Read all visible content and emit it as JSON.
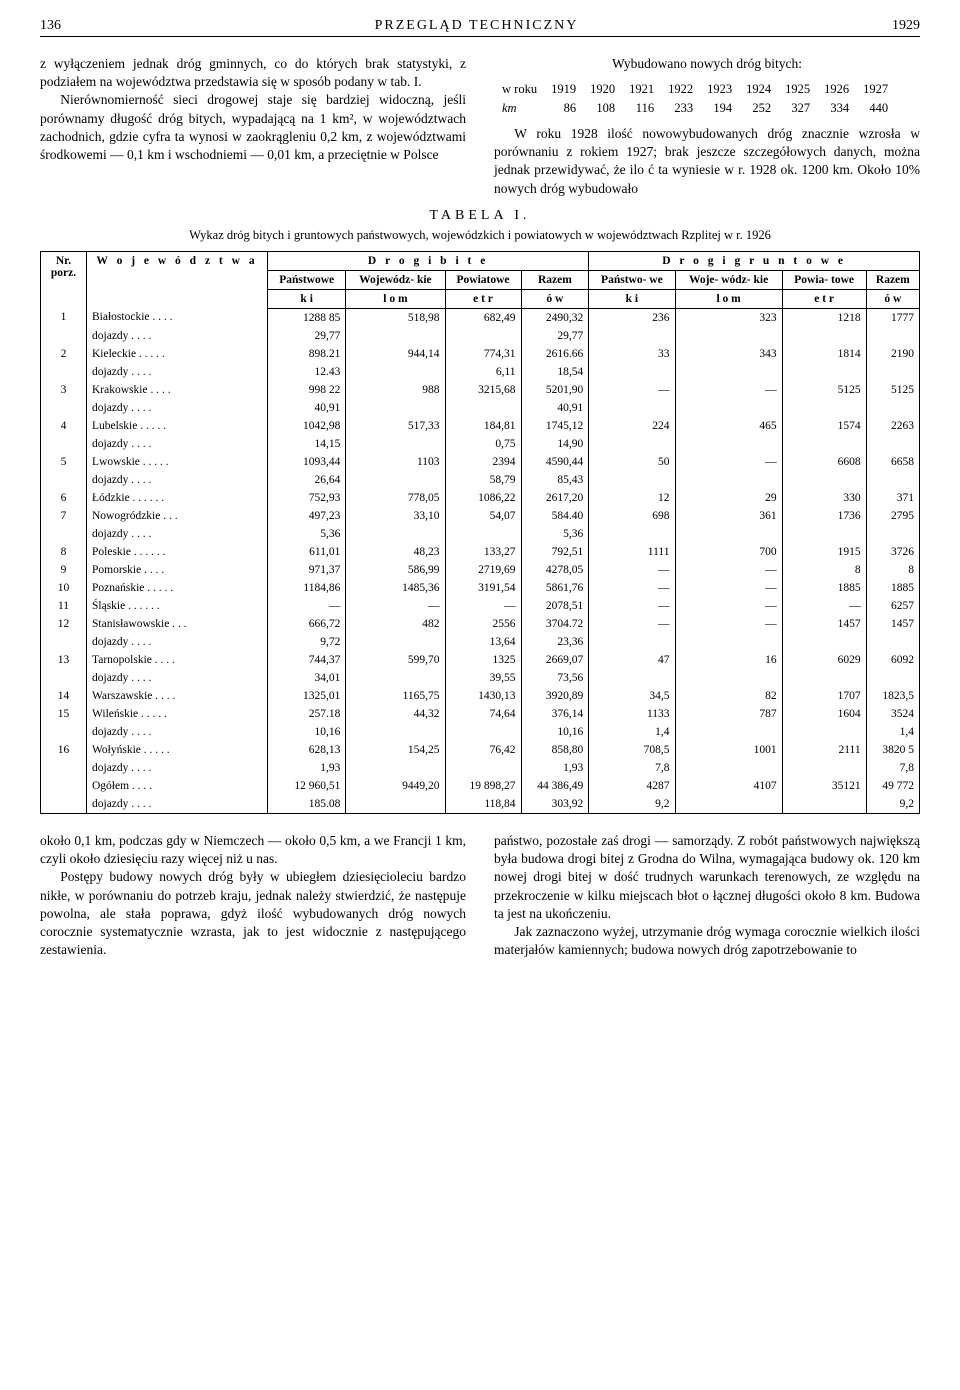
{
  "header": {
    "page_left": "136",
    "title_center": "PRZEGLĄD TECHNICZNY",
    "year_right": "1929"
  },
  "paragraphs": {
    "left1": "z wyłączeniem jednak dróg gminnych, co do których brak statystyki, z podziałem na województwa przedstawia się w sposób podany w tab. I.",
    "left2": "Nierównomierność sieci drogowej staje się bardziej widoczną, jeśli porównamy długość dróg bitych, wypadającą na 1 km², w województwach zachodnich, gdzie cyfra ta wynosi w zaokrągleniu 0,2 km, z województwami środkowemi — 0,1 km i wschodniemi — 0,01 km, a przeciętnie w Polsce",
    "right_head": "Wybudowano nowych dróg bitych:",
    "right_body": "W roku 1928 ilość nowowybudowanych dróg znacznie wzrosła w porównaniu z rokiem 1927; brak jeszcze szczegółowych danych, można jednak przewidywać, że ilo ć ta wyniesie w r. 1928 ok. 1200 km. Około 10% nowych dróg wybudowało",
    "bottom_left1": "około 0,1 km, podczas gdy w Niemczech — około 0,5 km, a we Francji 1 km, czyli około dziesięciu razy więcej niż u nas.",
    "bottom_left2": "Postępy budowy nowych dróg były w ubiegłem dziesięcioleciu bardzo nikłe, w porównaniu do potrzeb kraju, jednak należy stwierdzić, że następuje powolna, ale stała poprawa, gdyż ilość wybudowanych dróg nowych corocznie systematycznie wzrasta, jak to jest widocznie z następującego zestawienia.",
    "bottom_right1": "państwo, pozostałe zaś drogi — samorządy. Z robót państwowych największą była budowa drogi bitej z Grodna do Wilna, wymagająca budowy ok. 120 km nowej drogi bitej w dość trudnych warunkach terenowych, ze względu na przekroczenie w kilku miejscach błot o łącznej długości około 8 km. Budowa ta jest na ukończeniu.",
    "bottom_right2": "Jak zaznaczono wyżej, utrzymanie dróg wymaga corocznie wielkich ilości materjałów kamiennych; budowa nowych dróg zapotrzebowanie to"
  },
  "mini_table": {
    "row1_label": "w roku",
    "row1": [
      "1919",
      "1920",
      "1921",
      "1922",
      "1923",
      "1924",
      "1925",
      "1926",
      "1927"
    ],
    "row2_label": "km",
    "row2": [
      "86",
      "108",
      "116",
      "233",
      "194",
      "252",
      "327",
      "334",
      "440"
    ]
  },
  "table": {
    "title": "TABELA I.",
    "caption": "Wykaz dróg bitych i gruntowych państwowych, wojewódzkich i powiatowych w województwach Rzplitej w r. 1926",
    "head": {
      "nr": "Nr. porz.",
      "woj": "W o j e w ó d z t w a",
      "bite": "D  r  o  g  i      b  i  t  e",
      "grunt": "D r o g i   g r u n t o w e",
      "panstwowe": "Państwowe",
      "wojewodzkie": "Wojewódz-\nkie",
      "powiatowe": "Powiatowe",
      "razem": "Razem",
      "panstwowe2": "Państwo-\nwe",
      "wojewodzkie2": "Woje-\nwódz-\nkie",
      "powiatowe2": "Powia-\ntowe",
      "razem2": "Razem",
      "units_ki": "k   i",
      "units_lom": "l   o   m",
      "units_etr": "e   t   r",
      "units_ow": "ó   w"
    },
    "rows": [
      {
        "n": "1",
        "name": "Białostockie  .  .  .  .",
        "p": "1288 85",
        "w": "518,98",
        "po": "682,49",
        "r": "2490,32",
        "p2": "236",
        "w2": "323",
        "po2": "1218",
        "r2": "1777",
        "doj": true,
        "dp": "29,77",
        "dr": "29,77"
      },
      {
        "n": "2",
        "name": "Kieleckie   .  .  .  .  .",
        "p": "898.21",
        "w": "944,14",
        "po": "774,31",
        "r": "2616.66",
        "p2": "33",
        "w2": "343",
        "po2": "1814",
        "r2": "2190",
        "doj": true,
        "dp": "12.43",
        "dpo": "6,11",
        "dr": "18,54"
      },
      {
        "n": "3",
        "name": "Krakowskie   .  .  .  .",
        "p": "998 22",
        "w": "988",
        "po": "3215,68",
        "r": "5201,90",
        "p2": "—",
        "w2": "—",
        "po2": "5125",
        "r2": "5125",
        "doj": true,
        "dp": "40,91",
        "dr": "40,91"
      },
      {
        "n": "4",
        "name": "Lubelskie    .  .  .  .  .",
        "p": "1042,98",
        "w": "517,33",
        "po": "184,81",
        "r": "1745,12",
        "p2": "224",
        "w2": "465",
        "po2": "1574",
        "r2": "2263",
        "doj": true,
        "dp": "14,15",
        "dpo": "0,75",
        "dr": "14,90"
      },
      {
        "n": "5",
        "name": "Lwowskie    .  .  .  .  .",
        "p": "1093,44",
        "w": "1103",
        "po": "2394",
        "r": "4590,44",
        "p2": "50",
        "w2": "—",
        "po2": "6608",
        "r2": "6658",
        "doj": true,
        "dp": "26,64",
        "dpo": "58,79",
        "dr": "85,43"
      },
      {
        "n": "6",
        "name": "Łódzkie  .  .  .  .  .  .",
        "p": "752,93",
        "w": "778,05",
        "po": "1086,22",
        "r": "2617,20",
        "p2": "12",
        "w2": "29",
        "po2": "330",
        "r2": "371"
      },
      {
        "n": "7",
        "name": "Nowogródzkie   .  .  .",
        "p": "497,23",
        "w": "33,10",
        "po": "54,07",
        "r": "584.40",
        "p2": "698",
        "w2": "361",
        "po2": "1736",
        "r2": "2795",
        "doj": true,
        "dp": "5,36",
        "dr": "5,36"
      },
      {
        "n": "8",
        "name": "Poleskie .   .  .  .  .  .",
        "p": "611,01",
        "w": "48,23",
        "po": "133,27",
        "r": "792,51",
        "p2": "1111",
        "w2": "700",
        "po2": "1915",
        "r2": "3726"
      },
      {
        "n": "9",
        "name": "Pomorskie  .    .  .  .",
        "p": "971,37",
        "w": "586,99",
        "po": "2719,69",
        "r": "4278,05",
        "p2": "—",
        "w2": "—",
        "po2": "8",
        "r2": "8"
      },
      {
        "n": "10",
        "name": "Poznańskie .  .  .  .  .",
        "p": "1184,86",
        "w": "1485,36",
        "po": "3191,54",
        "r": "5861,76",
        "p2": "—",
        "w2": "—",
        "po2": "1885",
        "r2": "1885"
      },
      {
        "n": "11",
        "name": "Śląskie   .  .  .  .  .  .",
        "p": "—",
        "w": "—",
        "po": "—",
        "r": "2078,51",
        "p2": "—",
        "w2": "—",
        "po2": "—",
        "r2": "6257"
      },
      {
        "n": "12",
        "name": "Stanisławowskie .  .  .",
        "p": "666,72",
        "w": "482",
        "po": "2556",
        "r": "3704.72",
        "p2": "—",
        "w2": "—",
        "po2": "1457",
        "r2": "1457",
        "doj": true,
        "dp": "9,72",
        "dpo": "13,64",
        "dr": "23,36"
      },
      {
        "n": "13",
        "name": "Tarnopolskie   .  .  .  .",
        "p": "744,37",
        "w": "599,70",
        "po": "1325",
        "r": "2669,07",
        "p2": "47",
        "w2": "16",
        "po2": "6029",
        "r2": "6092",
        "doj": true,
        "dp": "34,01",
        "dpo": "39,55",
        "dr": "73,56"
      },
      {
        "n": "14",
        "name": "Warszawskie  .  .  .  .",
        "p": "1325,01",
        "w": "1165,75",
        "po": "1430,13",
        "r": "3920,89",
        "p2": "34,5",
        "w2": "82",
        "po2": "1707",
        "r2": "1823,5"
      },
      {
        "n": "15",
        "name": "Wileńskie   .  .  .  .  .",
        "p": "257.18",
        "w": "44,32",
        "po": "74,64",
        "r": "376,14",
        "p2": "1133",
        "w2": "787",
        "po2": "1604",
        "r2": "3524",
        "doj": true,
        "dp": "10,16",
        "dr": "10,16",
        "dp2": "1,4",
        "dr2": "1,4"
      },
      {
        "n": "16",
        "name": "Wołyńskie  .  .  .  .  .",
        "p": "628,13",
        "w": "154,25",
        "po": "76,42",
        "r": "858,80",
        "p2": "708,5",
        "w2": "1001",
        "po2": "2111",
        "r2": "3820 5",
        "doj": true,
        "dp": "1,93",
        "dr": "1,93",
        "dp2": "7,8",
        "dr2": "7,8"
      }
    ],
    "total": {
      "name": "Ogółem      .  .  .  .",
      "p": "12 960,51",
      "w": "9449,20",
      "po": "19 898,27",
      "r": "44 386,49",
      "p2": "4287",
      "w2": "4107",
      "po2": "35121",
      "r2": "49 772",
      "doj_name": "dojazdy     .  .  .  .",
      "dp": "185.08",
      "dpo": "118,84",
      "dr": "303,92",
      "dp2": "9,2",
      "dr2": "9,2"
    },
    "dojazdy_label": "dojazdy    .  .  .  ."
  }
}
